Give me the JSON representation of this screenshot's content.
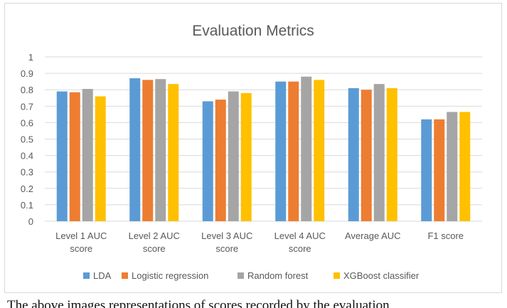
{
  "chart_data": {
    "type": "bar",
    "title": "Evaluation Metrics",
    "categories": [
      [
        "Level 1 AUC",
        "score"
      ],
      [
        "Level 2 AUC",
        "score"
      ],
      [
        "Level 3 AUC",
        "score"
      ],
      [
        "Level 4 AUC",
        "score"
      ],
      [
        "Average AUC"
      ],
      [
        "F1 score"
      ]
    ],
    "series": [
      {
        "name": "LDA",
        "color": "#5b9bd5",
        "values": [
          0.79,
          0.87,
          0.73,
          0.85,
          0.81,
          0.62
        ]
      },
      {
        "name": "Logistic regression",
        "color": "#ed7d31",
        "values": [
          0.785,
          0.86,
          0.74,
          0.85,
          0.8,
          0.62
        ]
      },
      {
        "name": "Random forest",
        "color": "#a5a5a5",
        "values": [
          0.805,
          0.865,
          0.79,
          0.88,
          0.835,
          0.665
        ]
      },
      {
        "name": "XGBoost classifier",
        "color": "#ffc000",
        "values": [
          0.76,
          0.835,
          0.78,
          0.86,
          0.81,
          0.665
        ]
      }
    ],
    "yticks": [
      "0",
      "0.1",
      "0.2",
      "0.3",
      "0.4",
      "0.5",
      "0.6",
      "0.7",
      "0.8",
      "0.9",
      "1"
    ],
    "ylim": [
      0,
      1
    ],
    "xlabel": "",
    "ylabel": "",
    "grid": true,
    "legend_position": "bottom",
    "gridline_color": "#d9d9d9"
  },
  "caption": "The above images representations of scores recorded by the evaluation"
}
